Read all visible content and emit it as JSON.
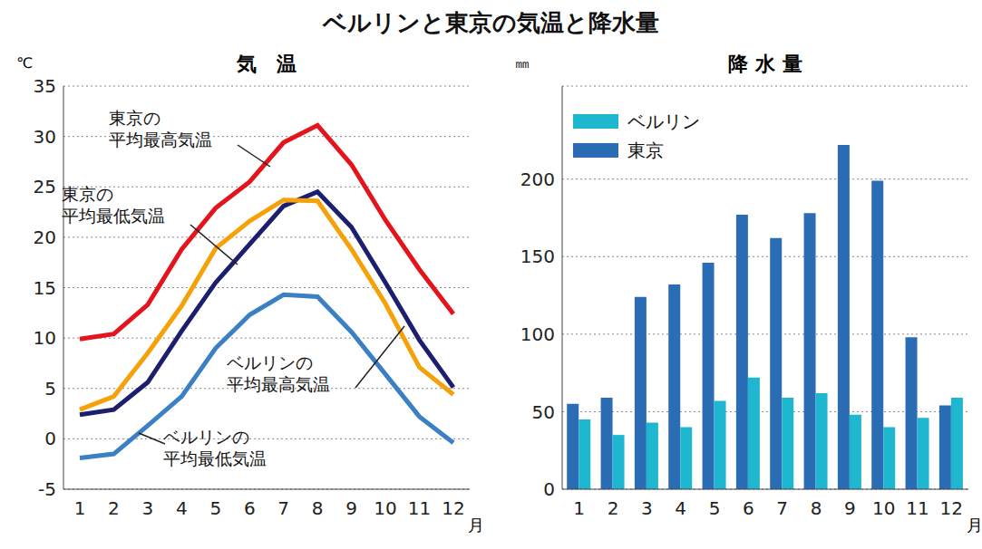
{
  "title": "ベルリンと東京の気温と降水量",
  "chart_data": [
    {
      "type": "line",
      "title": "気　温",
      "ylabel": "℃",
      "xlabel": "月",
      "categories": [
        "1",
        "2",
        "3",
        "4",
        "5",
        "6",
        "7",
        "8",
        "9",
        "10",
        "11",
        "12"
      ],
      "series": [
        {
          "name": "東京の平均最高気温",
          "color": "#e3141c",
          "values": [
            9.9,
            10.4,
            13.3,
            18.8,
            22.9,
            25.5,
            29.4,
            31.1,
            27.2,
            21.7,
            16.8,
            12.4
          ]
        },
        {
          "name": "東京の平均最低気温",
          "color": "#1b1f6e",
          "values": [
            2.4,
            2.9,
            5.6,
            10.7,
            15.5,
            19.3,
            23.1,
            24.5,
            21.0,
            15.5,
            9.8,
            5.1
          ]
        },
        {
          "name": "ベルリンの平均最高気温",
          "color": "#f5a10a",
          "values": [
            2.9,
            4.2,
            8.5,
            13.2,
            18.9,
            21.6,
            23.7,
            23.6,
            18.8,
            13.4,
            7.1,
            4.4
          ]
        },
        {
          "name": "ベルリンの平均最低気温",
          "color": "#3b7fc4",
          "values": [
            -1.9,
            -1.5,
            1.3,
            4.2,
            9.0,
            12.3,
            14.3,
            14.1,
            10.6,
            6.4,
            2.2,
            -0.4
          ]
        }
      ],
      "ylim": [
        -5,
        35
      ],
      "yticks": [
        -5,
        0,
        5,
        10,
        15,
        20,
        25,
        30,
        35
      ],
      "grid": true
    },
    {
      "type": "bar",
      "title": "降 水 量",
      "ylabel": "㎜",
      "xlabel": "月",
      "categories": [
        "1",
        "2",
        "3",
        "4",
        "5",
        "6",
        "7",
        "8",
        "9",
        "10",
        "11",
        "12"
      ],
      "series": [
        {
          "name": "ベルリン",
          "color": "#1fb6d0",
          "values": [
            45,
            35,
            43,
            40,
            57,
            72,
            59,
            62,
            48,
            40,
            46,
            59
          ]
        },
        {
          "name": "東京",
          "color": "#2a6db5",
          "values": [
            55,
            59,
            124,
            132,
            146,
            177,
            162,
            178,
            222,
            199,
            98,
            54
          ]
        }
      ],
      "ylim": [
        0,
        260
      ],
      "yticks": [
        0,
        50,
        100,
        150,
        200
      ],
      "grid": true,
      "legend": "upper left"
    }
  ]
}
